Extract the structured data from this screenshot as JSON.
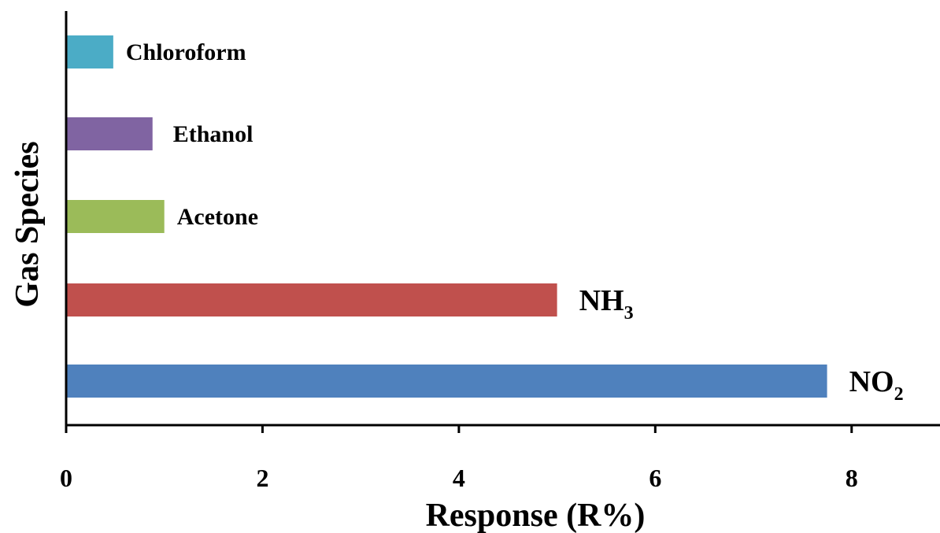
{
  "chart_data": {
    "type": "bar",
    "orientation": "horizontal",
    "categories": [
      "NO2",
      "NH3",
      "Acetone",
      "Ethanol",
      "Chloroform"
    ],
    "category_labels": [
      {
        "main": "NO",
        "sub": "2"
      },
      {
        "main": "NH",
        "sub": "3"
      },
      {
        "main": "Acetone",
        "sub": ""
      },
      {
        "main": "Ethanol",
        "sub": ""
      },
      {
        "main": "Chloroform",
        "sub": ""
      }
    ],
    "values": [
      7.75,
      5.0,
      1.0,
      0.88,
      0.48
    ],
    "colors": [
      "#4f81bd",
      "#c0504d",
      "#9bbb59",
      "#8064a2",
      "#4bacc6"
    ],
    "title": "",
    "xlabel": "Response (R%)",
    "ylabel": "Gas Species",
    "xlim": [
      0,
      8.9
    ],
    "xticks": [
      0,
      2,
      4,
      6,
      8
    ],
    "xtick_labels": [
      "0",
      "2",
      "4",
      "6",
      "8"
    ],
    "grid": false,
    "legend": "none"
  }
}
